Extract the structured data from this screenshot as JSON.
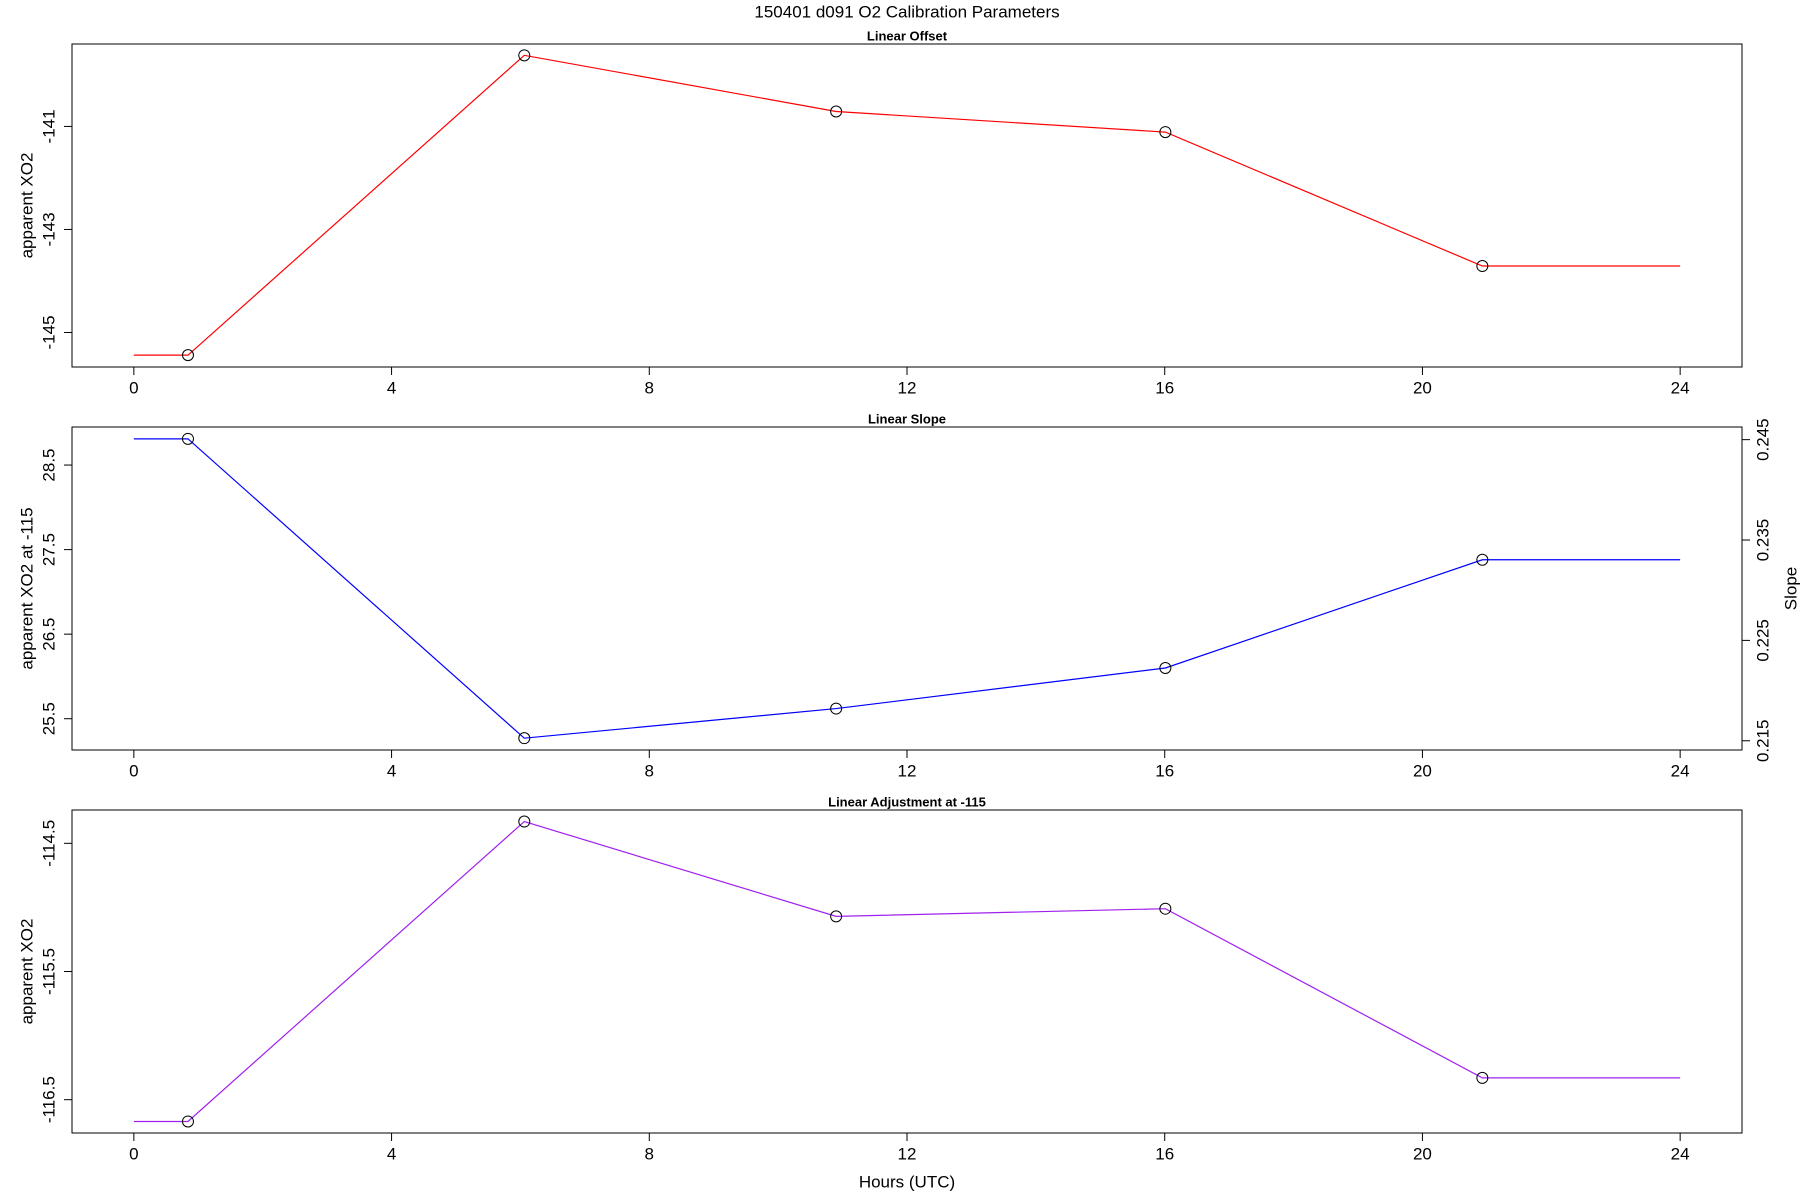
{
  "title": "150401   d091   O2 Calibration Parameters",
  "xlabel": "Hours (UTC)",
  "chart_data": [
    {
      "type": "line",
      "title": "Linear Offset",
      "ylabel": "apparent XO2",
      "x": [
        0,
        0.84,
        6.06,
        10.9,
        16.01,
        20.93,
        24
      ],
      "series": [
        {
          "name": "Linear Offset",
          "color": "#ff0000",
          "values": [
            -145.44,
            -145.44,
            -139.62,
            -140.71,
            -141.11,
            -143.71,
            -143.71
          ]
        }
      ],
      "xlim": [
        -0.96,
        24.96
      ],
      "xticks": [
        0,
        4,
        8,
        12,
        16,
        20,
        24
      ],
      "ylim": [
        -145.67,
        -139.4
      ],
      "yticks": [
        -145,
        -143,
        -141
      ]
    },
    {
      "type": "line",
      "title": "Linear Slope",
      "ylabel": "apparent XO2 at -115",
      "y2label": "Slope",
      "x": [
        0,
        0.84,
        6.06,
        10.9,
        16.01,
        20.93,
        24
      ],
      "series": [
        {
          "name": "Linear Slope",
          "color": "#0000ff",
          "values": [
            28.81,
            28.81,
            25.27,
            25.62,
            26.1,
            27.38,
            27.38
          ]
        }
      ],
      "xlim": [
        -0.96,
        24.96
      ],
      "xticks": [
        0,
        4,
        8,
        12,
        16,
        20,
        24
      ],
      "ylim": [
        25.13,
        28.95
      ],
      "yticks": [
        25.5,
        26.5,
        27.5,
        28.5
      ],
      "y2lim": [
        0.21408,
        0.24626
      ],
      "y2ticks": [
        0.215,
        0.225,
        0.235,
        0.245
      ]
    },
    {
      "type": "line",
      "title": "Linear Adjustment at -115",
      "ylabel": "apparent XO2",
      "x": [
        0,
        0.84,
        6.06,
        10.9,
        16.01,
        20.93,
        24
      ],
      "series": [
        {
          "name": "Linear Adjustment at -115",
          "color": "#a020f0",
          "values": [
            -116.67,
            -116.67,
            -114.33,
            -115.07,
            -115.01,
            -116.33,
            -116.33
          ]
        }
      ],
      "xlim": [
        -0.96,
        24.96
      ],
      "xticks": [
        0,
        4,
        8,
        12,
        16,
        20,
        24
      ],
      "ylim": [
        -116.76,
        -114.24
      ],
      "yticks": [
        -116.5,
        -115.5,
        -114.5
      ]
    }
  ]
}
